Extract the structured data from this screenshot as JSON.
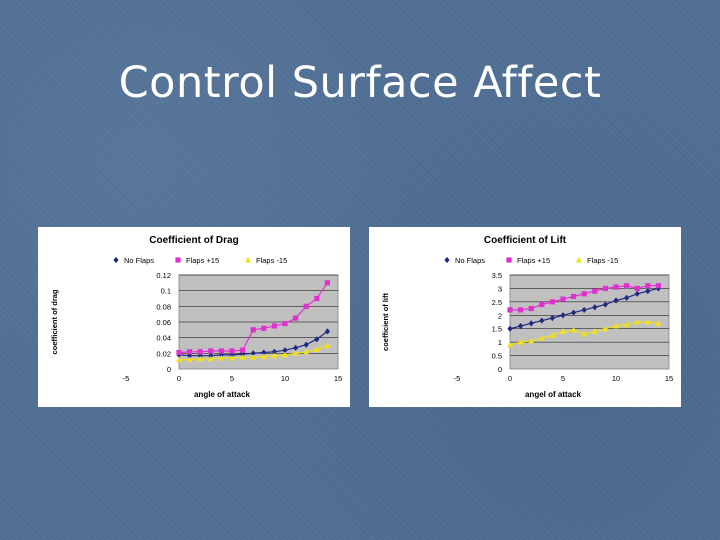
{
  "slide": {
    "title": "Control Surface Affect"
  },
  "chart_data": [
    {
      "type": "line",
      "title": "Coefficient of Drag",
      "xlabel": "angle of attack",
      "ylabel": "coefficient of drag",
      "xlim": [
        -5,
        15
      ],
      "ylim": [
        0,
        0.12
      ],
      "xticks": [
        "-5",
        "0",
        "5",
        "10",
        "15"
      ],
      "yticks": [
        "0",
        "0.02",
        "0.04",
        "0.06",
        "0.08",
        "0.1",
        "0.12"
      ],
      "legend_position": "top",
      "series": [
        {
          "name": "No Flaps",
          "color": "#1f2a80",
          "marker": "diamond",
          "x": [
            0,
            1,
            2,
            3,
            4,
            5,
            6,
            7,
            8,
            9,
            10,
            11,
            12,
            13,
            14
          ],
          "y": [
            0.018,
            0.017,
            0.017,
            0.017,
            0.018,
            0.018,
            0.019,
            0.02,
            0.021,
            0.022,
            0.024,
            0.027,
            0.031,
            0.038,
            0.048
          ]
        },
        {
          "name": "Flaps +15",
          "color": "#e030d0",
          "marker": "square",
          "x": [
            0,
            1,
            2,
            3,
            4,
            5,
            6,
            7,
            8,
            9,
            10,
            11,
            12,
            13,
            14
          ],
          "y": [
            0.021,
            0.022,
            0.022,
            0.023,
            0.023,
            0.023,
            0.024,
            0.05,
            0.052,
            0.055,
            0.058,
            0.065,
            0.08,
            0.09,
            0.11
          ]
        },
        {
          "name": "Flaps -15",
          "color": "#f0e020",
          "marker": "triangle",
          "x": [
            0,
            1,
            2,
            3,
            4,
            5,
            6,
            7,
            8,
            9,
            10,
            11,
            12,
            13,
            14
          ],
          "y": [
            0.012,
            0.012,
            0.013,
            0.013,
            0.014,
            0.014,
            0.015,
            0.015,
            0.016,
            0.017,
            0.018,
            0.02,
            0.022,
            0.025,
            0.03
          ]
        }
      ]
    },
    {
      "type": "line",
      "title": "Coefficient of Lift",
      "xlabel": "angel of attack",
      "ylabel": "coefficient of lift",
      "xlim": [
        -5,
        15
      ],
      "ylim": [
        0,
        3.5
      ],
      "xticks": [
        "-5",
        "0",
        "5",
        "10",
        "15"
      ],
      "yticks": [
        "0",
        "0.5",
        "1",
        "1.5",
        "2",
        "2.5",
        "3",
        "3.5"
      ],
      "legend_position": "top",
      "series": [
        {
          "name": "No Flaps",
          "color": "#1f2a80",
          "marker": "diamond",
          "x": [
            0,
            1,
            2,
            3,
            4,
            5,
            6,
            7,
            8,
            9,
            10,
            11,
            12,
            13,
            14
          ],
          "y": [
            1.5,
            1.6,
            1.7,
            1.8,
            1.9,
            2.0,
            2.1,
            2.2,
            2.3,
            2.4,
            2.55,
            2.65,
            2.8,
            2.9,
            3.0
          ]
        },
        {
          "name": "Flaps +15",
          "color": "#e030d0",
          "marker": "square",
          "x": [
            0,
            1,
            2,
            3,
            4,
            5,
            6,
            7,
            8,
            9,
            10,
            11,
            12,
            13,
            14
          ],
          "y": [
            2.2,
            2.2,
            2.25,
            2.4,
            2.5,
            2.6,
            2.7,
            2.8,
            2.9,
            3.0,
            3.05,
            3.1,
            3.0,
            3.1,
            3.1
          ]
        },
        {
          "name": "Flaps -15",
          "color": "#f0e020",
          "marker": "triangle",
          "x": [
            0,
            1,
            2,
            3,
            4,
            5,
            6,
            7,
            8,
            9,
            10,
            11,
            12,
            13,
            14
          ],
          "y": [
            0.9,
            1.0,
            1.05,
            1.15,
            1.25,
            1.4,
            1.45,
            1.3,
            1.4,
            1.5,
            1.6,
            1.65,
            1.75,
            1.75,
            1.7
          ]
        }
      ]
    }
  ]
}
